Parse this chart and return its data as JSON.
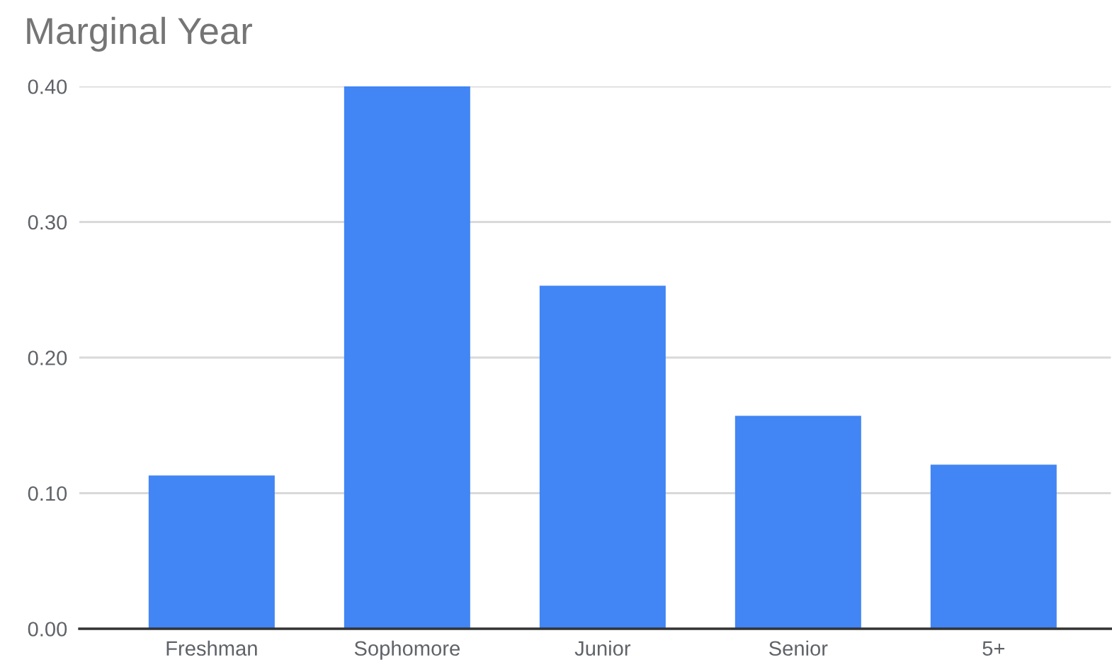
{
  "chart_data": {
    "type": "bar",
    "title": "Marginal Year",
    "categories": [
      "Freshman",
      "Sophomore",
      "Junior",
      "Senior",
      "5+"
    ],
    "values": [
      0.113,
      0.4,
      0.253,
      0.157,
      0.121
    ],
    "color": "#4285f4",
    "ylim": [
      0,
      0.4
    ],
    "yticks": [
      {
        "value": 0,
        "label": "0.00"
      },
      {
        "value": 0.1,
        "label": "0.10"
      },
      {
        "value": 0.2,
        "label": "0.20"
      },
      {
        "value": 0.3,
        "label": "0.30"
      },
      {
        "value": 0.4,
        "label": "0.40"
      }
    ],
    "grid": "y"
  }
}
